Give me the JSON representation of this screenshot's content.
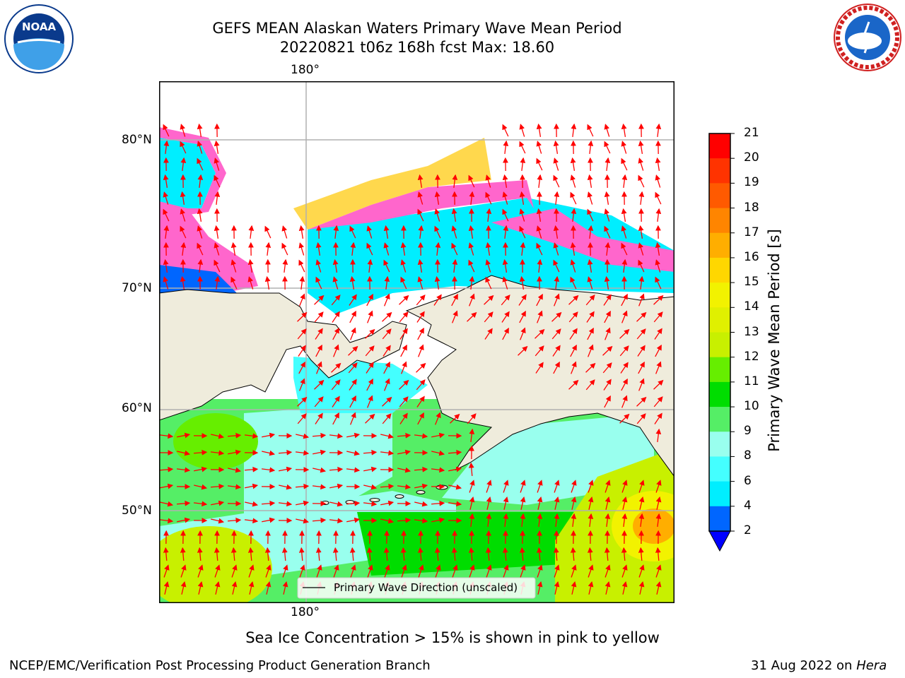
{
  "header": {
    "title_line1": "GEFS MEAN Alaskan Waters Primary Wave Mean Period",
    "title_line2": "20220821 t06z 168h fcst   Max: 18.60"
  },
  "logos": {
    "left": {
      "name": "noaa-logo",
      "text": "NOAA"
    },
    "right": {
      "name": "nws-logo",
      "text": "NATIONAL WEATHER SERVICE"
    }
  },
  "map": {
    "top_lon_label": "180°",
    "bottom_lon_label": "180°",
    "lat_labels": [
      "80°N",
      "70°N",
      "60°N",
      "50°N"
    ],
    "legend_text": "Primary Wave Direction (unscaled)",
    "colors": {
      "land": "#efecdc",
      "grid": "#b0b0b0",
      "arrow": "#ff0000",
      "ice_pink": "#ff66cc",
      "ice_yellow": "#ffd84d"
    }
  },
  "colorbar": {
    "label": "Primary Wave Mean Period [s]",
    "ticks": [
      "21",
      "20",
      "19",
      "18",
      "17",
      "16",
      "15",
      "14",
      "13",
      "12",
      "11",
      "10",
      "9",
      "8",
      "6",
      "4",
      "2"
    ],
    "colors": [
      "#ff0000",
      "#ff3300",
      "#ff5a00",
      "#ff8500",
      "#ffae00",
      "#ffd700",
      "#f2f200",
      "#e0f000",
      "#c8f000",
      "#66ee00",
      "#00dd00",
      "#55ee66",
      "#99ffee",
      "#44ffff",
      "#00eeff",
      "#0066ff"
    ],
    "extend_color": "#0000ff"
  },
  "footer": {
    "ice_note": "Sea Ice Concentration > 15% is shown in pink to yellow",
    "branch": "NCEP/EMC/Verification Post Processing Product Generation Branch",
    "date": "31 Aug 2022 on",
    "host": "Hera"
  }
}
